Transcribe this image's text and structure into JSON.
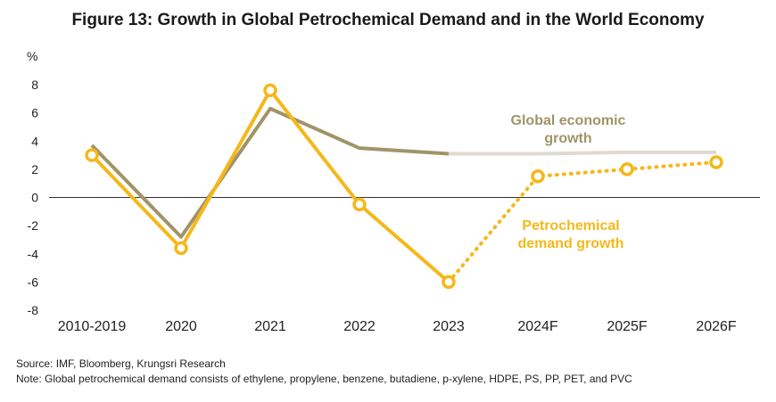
{
  "title": "Figure 13: Growth in Global Petrochemical Demand and in the World Economy",
  "source": "Source: IMF, Bloomberg, Krungsri Research",
  "note": "Note: Global petrochemical demand consists of ethylene, propylene, benzene, butadiene, p-xylene, HDPE, PS, PP, PET, and PVC",
  "chart_data": {
    "type": "line",
    "title": "Figure 13: Growth in Global Petrochemical Demand and in the World Economy",
    "ylabel": "%",
    "xlabel": "",
    "ylim": [
      -8,
      8
    ],
    "yticks": [
      8,
      6,
      4,
      2,
      0,
      -2,
      -4,
      -6,
      -8
    ],
    "ytick_labels": [
      "8",
      "6",
      "4",
      "2",
      "0",
      "-2",
      "-4",
      "-6",
      "-8"
    ],
    "categories": [
      "2010-2019",
      "2020",
      "2021",
      "2022",
      "2023",
      "2024F",
      "2025F",
      "2026F"
    ],
    "grid": false,
    "series": [
      {
        "name": "Global economic growth",
        "label_lines": [
          "Global economic",
          "growth"
        ],
        "values": [
          3.7,
          -2.8,
          6.3,
          3.5,
          3.1,
          3.1,
          3.2,
          3.2
        ],
        "actual_color": "#a09468",
        "forecast_color": "#dedad0",
        "forecast_from_index": 4,
        "markers": false
      },
      {
        "name": "Petrochemical demand growth",
        "label_lines": [
          "Petrochemical",
          "demand growth"
        ],
        "values": [
          3.0,
          -3.6,
          7.6,
          -0.5,
          -6.0,
          1.5,
          2.0,
          2.5
        ],
        "actual_color": "#f5b81a",
        "forecast_color": "#f5b81a",
        "forecast_dotted": true,
        "forecast_from_index": 4,
        "markers": true
      }
    ]
  }
}
